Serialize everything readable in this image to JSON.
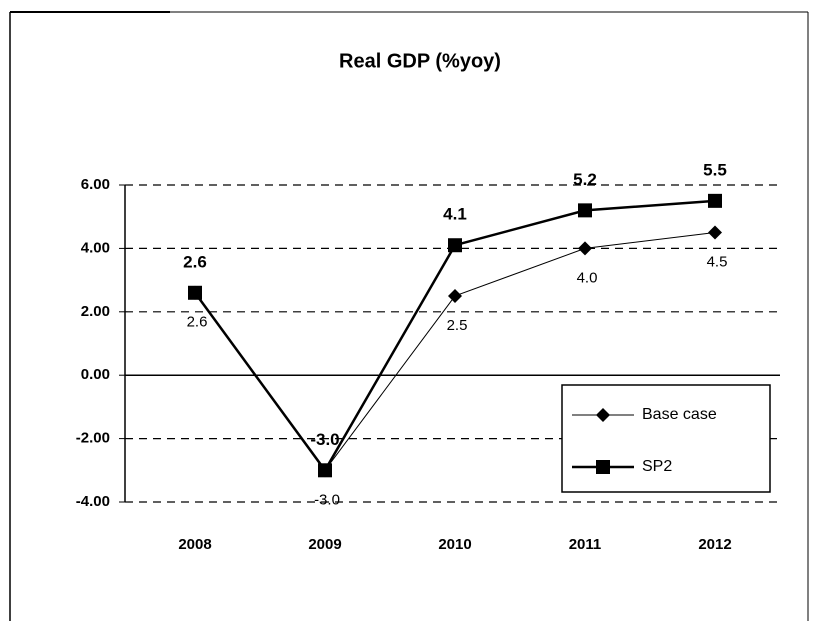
{
  "chart_data": {
    "type": "line",
    "title": "Real GDP (%yoy)",
    "categories": [
      "2008",
      "2009",
      "2010",
      "2011",
      "2012"
    ],
    "series": [
      {
        "name": "Base case",
        "color": "#000000",
        "values": [
          2.6,
          -3.0,
          2.5,
          4.0,
          4.5
        ],
        "value_labels": [
          "2.6",
          "-3.0",
          "2.5",
          "4.0",
          "4.5"
        ]
      },
      {
        "name": "SP2",
        "color": "#000000",
        "values": [
          2.6,
          -3.0,
          4.1,
          5.2,
          5.5
        ],
        "value_labels": [
          "2.6",
          "-3.0",
          "4.1",
          "5.2",
          "5.5"
        ]
      }
    ],
    "ylim": [
      -4,
      6
    ],
    "yticks": [
      {
        "value": -4,
        "label": "-4.00"
      },
      {
        "value": -2,
        "label": "-2.00"
      },
      {
        "value": 0,
        "label": "0.00"
      },
      {
        "value": 2,
        "label": "2.00"
      },
      {
        "value": 4,
        "label": "4.00"
      },
      {
        "value": 6,
        "label": "6.00"
      }
    ],
    "grid": true,
    "legend": "lower right"
  }
}
